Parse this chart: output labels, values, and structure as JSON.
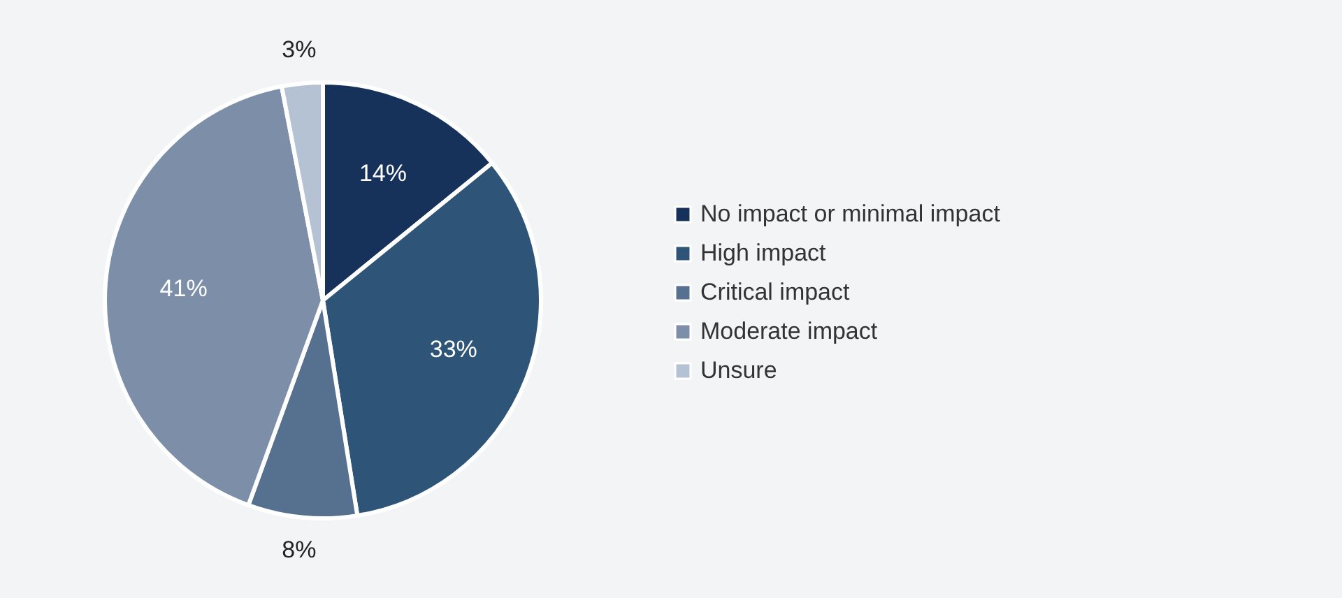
{
  "chart_data": {
    "type": "pie",
    "categories": [
      "No impact or minimal impact",
      "High impact",
      "Critical impact",
      "Moderate impact",
      "Unsure"
    ],
    "values": [
      14,
      33,
      8,
      41,
      3
    ],
    "colors": [
      "#17325a",
      "#2e5478",
      "#56708f",
      "#7d8fa8",
      "#b4c2d3"
    ],
    "value_labels": [
      "14%",
      "33%",
      "8%",
      "41%",
      "3%"
    ],
    "legend": "right"
  }
}
